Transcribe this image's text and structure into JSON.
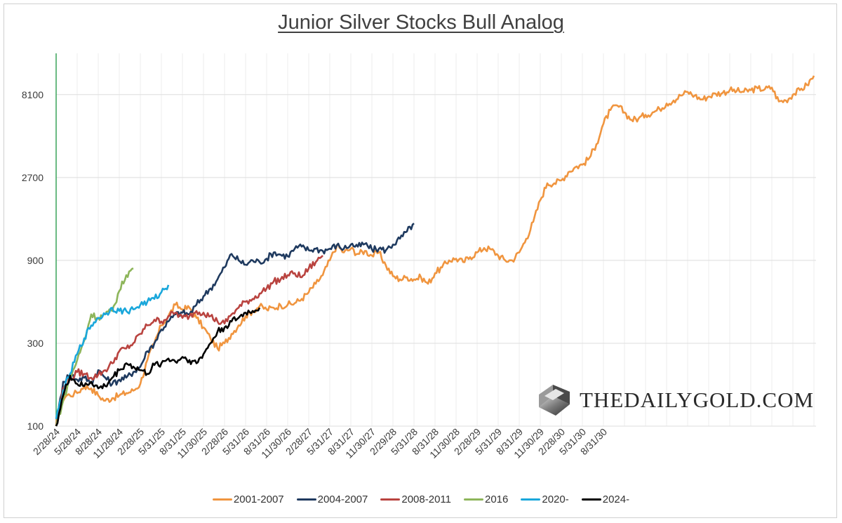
{
  "chart_data": {
    "type": "line",
    "title": "Junior Silver Stocks Bull Analog",
    "y_scale": "log",
    "ylim": [
      100,
      14000
    ],
    "y_ticks": [
      "100",
      "300",
      "900",
      "2700",
      "8100"
    ],
    "x_ticks": [
      "2/28/24",
      "5/28/24",
      "8/28/24",
      "11/28/24",
      "2/28/25",
      "5/31/25",
      "8/31/25",
      "11/30/25",
      "2/28/26",
      "5/31/26",
      "8/31/26",
      "11/30/26",
      "2/28/27",
      "5/31/27",
      "8/31/27",
      "11/30/27",
      "2/29/28",
      "5/31/28",
      "8/31/28",
      "11/30/28",
      "2/28/29",
      "5/31/29",
      "8/31/29",
      "11/30/29",
      "2/28/30",
      "5/31/30",
      "8/31/30"
    ],
    "x_unit": "months since 2/28/24",
    "grid": true,
    "legend_position": "bottom",
    "series": [
      {
        "name": "2001-2007",
        "color": "#F0953F",
        "points": [
          [
            0,
            100
          ],
          [
            0.5,
            135
          ],
          [
            1.5,
            150
          ],
          [
            3,
            155
          ],
          [
            4,
            170
          ],
          [
            5,
            165
          ],
          [
            6,
            150
          ],
          [
            7,
            140
          ],
          [
            8,
            145
          ],
          [
            9,
            150
          ],
          [
            10,
            155
          ],
          [
            11,
            160
          ],
          [
            12,
            175
          ],
          [
            13,
            240
          ],
          [
            14,
            300
          ],
          [
            15,
            380
          ],
          [
            16,
            430
          ],
          [
            17,
            500
          ],
          [
            18,
            470
          ],
          [
            19,
            480
          ],
          [
            20,
            420
          ],
          [
            21,
            370
          ],
          [
            22,
            320
          ],
          [
            23,
            280
          ],
          [
            24,
            300
          ],
          [
            25,
            340
          ],
          [
            26,
            380
          ],
          [
            27,
            430
          ],
          [
            28,
            460
          ],
          [
            29,
            490
          ],
          [
            30,
            470
          ],
          [
            31,
            480
          ],
          [
            32,
            495
          ],
          [
            33,
            500
          ],
          [
            34,
            510
          ],
          [
            35,
            540
          ],
          [
            36,
            590
          ],
          [
            37,
            660
          ],
          [
            38,
            740
          ],
          [
            39,
            900
          ],
          [
            40,
            1100
          ],
          [
            41,
            1000
          ],
          [
            42,
            1050
          ],
          [
            43,
            980
          ],
          [
            44,
            1020
          ],
          [
            45,
            960
          ],
          [
            46,
            1000
          ],
          [
            47,
            840
          ],
          [
            48,
            730
          ],
          [
            49,
            700
          ],
          [
            50,
            720
          ],
          [
            51,
            700
          ],
          [
            52,
            720
          ],
          [
            53,
            660
          ],
          [
            54,
            760
          ],
          [
            55,
            820
          ],
          [
            56,
            900
          ],
          [
            57,
            920
          ],
          [
            58,
            880
          ],
          [
            59,
            940
          ],
          [
            60,
            1000
          ],
          [
            61,
            1060
          ],
          [
            62,
            1040
          ],
          [
            63,
            960
          ],
          [
            64,
            900
          ],
          [
            65,
            900
          ],
          [
            66,
            1000
          ],
          [
            67,
            1200
          ],
          [
            68,
            1500
          ],
          [
            69,
            2000
          ],
          [
            70,
            2500
          ],
          [
            71,
            2500
          ],
          [
            72,
            2600
          ],
          [
            73,
            2900
          ],
          [
            74,
            3100
          ],
          [
            75,
            3200
          ],
          [
            76,
            3500
          ],
          [
            77,
            4200
          ],
          [
            78,
            5500
          ],
          [
            79,
            6600
          ],
          [
            80,
            7000
          ],
          [
            81,
            6400
          ],
          [
            82,
            5800
          ],
          [
            83,
            5900
          ],
          [
            84,
            6200
          ],
          [
            85,
            6400
          ],
          [
            86,
            6700
          ],
          [
            87,
            7200
          ],
          [
            88,
            7500
          ],
          [
            89,
            8000
          ],
          [
            90,
            8400
          ],
          [
            91,
            8000
          ],
          [
            92,
            7600
          ],
          [
            93,
            7900
          ],
          [
            94,
            8200
          ],
          [
            95,
            8300
          ],
          [
            96,
            8600
          ],
          [
            97,
            8500
          ],
          [
            98,
            8400
          ],
          [
            99,
            8600
          ],
          [
            100,
            8800
          ],
          [
            101,
            8700
          ],
          [
            102,
            8900
          ],
          [
            103,
            7400
          ],
          [
            104,
            7500
          ],
          [
            105,
            8100
          ],
          [
            106,
            8600
          ],
          [
            107,
            9200
          ],
          [
            108,
            10400
          ]
        ]
      },
      {
        "name": "2004-2007",
        "color": "#1F3A5F",
        "points": [
          [
            0,
            100
          ],
          [
            1,
            180
          ],
          [
            2,
            200
          ],
          [
            3,
            185
          ],
          [
            4,
            190
          ],
          [
            5,
            178
          ],
          [
            6,
            210
          ],
          [
            7,
            190
          ],
          [
            8,
            175
          ],
          [
            9,
            185
          ],
          [
            10,
            190
          ],
          [
            11,
            205
          ],
          [
            12,
            220
          ],
          [
            13,
            270
          ],
          [
            14,
            300
          ],
          [
            15,
            360
          ],
          [
            16,
            400
          ],
          [
            17,
            440
          ],
          [
            18,
            450
          ],
          [
            19,
            440
          ],
          [
            20,
            500
          ],
          [
            21,
            560
          ],
          [
            22,
            620
          ],
          [
            23,
            700
          ],
          [
            24,
            820
          ],
          [
            25,
            980
          ],
          [
            26,
            900
          ],
          [
            27,
            850
          ],
          [
            28,
            900
          ],
          [
            29,
            880
          ],
          [
            30,
            920
          ],
          [
            31,
            1000
          ],
          [
            32,
            970
          ],
          [
            33,
            950
          ],
          [
            34,
            1050
          ],
          [
            35,
            1080
          ],
          [
            36,
            1030
          ],
          [
            37,
            1050
          ],
          [
            38,
            1020
          ],
          [
            39,
            1050
          ],
          [
            40,
            1100
          ],
          [
            41,
            1050
          ],
          [
            42,
            1110
          ],
          [
            43,
            1080
          ],
          [
            44,
            1120
          ],
          [
            45,
            1040
          ],
          [
            46,
            1050
          ],
          [
            47,
            1030
          ],
          [
            48,
            1110
          ],
          [
            49,
            1200
          ],
          [
            50,
            1320
          ],
          [
            51,
            1470
          ]
        ]
      },
      {
        "name": "2008-2011",
        "color": "#B9433F",
        "points": [
          [
            0,
            100
          ],
          [
            1,
            165
          ],
          [
            2,
            185
          ],
          [
            3,
            205
          ],
          [
            4,
            200
          ],
          [
            5,
            190
          ],
          [
            6,
            198
          ],
          [
            7,
            210
          ],
          [
            8,
            230
          ],
          [
            9,
            270
          ],
          [
            10,
            280
          ],
          [
            11,
            300
          ],
          [
            12,
            340
          ],
          [
            13,
            380
          ],
          [
            14,
            410
          ],
          [
            15,
            400
          ],
          [
            16,
            430
          ],
          [
            17,
            450
          ],
          [
            18,
            420
          ],
          [
            19,
            430
          ],
          [
            20,
            460
          ],
          [
            21,
            450
          ],
          [
            22,
            430
          ],
          [
            23,
            400
          ],
          [
            24,
            390
          ],
          [
            25,
            440
          ],
          [
            26,
            480
          ],
          [
            27,
            520
          ],
          [
            28,
            540
          ],
          [
            29,
            580
          ],
          [
            30,
            620
          ],
          [
            31,
            680
          ],
          [
            32,
            700
          ],
          [
            33,
            740
          ],
          [
            34,
            760
          ],
          [
            35,
            720
          ],
          [
            36,
            810
          ],
          [
            37,
            880
          ],
          [
            38,
            960
          ]
        ]
      },
      {
        "name": "2016",
        "color": "#8DB55A",
        "points": [
          [
            0,
            100
          ],
          [
            1,
            140
          ],
          [
            2,
            190
          ],
          [
            3,
            240
          ],
          [
            4,
            310
          ],
          [
            5,
            440
          ],
          [
            6,
            420
          ],
          [
            7,
            440
          ],
          [
            8,
            460
          ],
          [
            9,
            600
          ],
          [
            10,
            740
          ],
          [
            11,
            810
          ]
        ]
      },
      {
        "name": "2020-",
        "color": "#1AA7DB",
        "points": [
          [
            0,
            110
          ],
          [
            1,
            160
          ],
          [
            2,
            200
          ],
          [
            3,
            260
          ],
          [
            4,
            320
          ],
          [
            5,
            380
          ],
          [
            6,
            420
          ],
          [
            7,
            440
          ],
          [
            8,
            480
          ],
          [
            9,
            460
          ],
          [
            10,
            460
          ],
          [
            11,
            470
          ],
          [
            12,
            500
          ],
          [
            13,
            520
          ],
          [
            14,
            540
          ],
          [
            15,
            590
          ],
          [
            16,
            650
          ]
        ]
      },
      {
        "name": "2024-",
        "color": "#000000",
        "points": [
          [
            0,
            100
          ],
          [
            1,
            150
          ],
          [
            2,
            195
          ],
          [
            3,
            175
          ],
          [
            4,
            170
          ],
          [
            5,
            180
          ],
          [
            6,
            165
          ],
          [
            7,
            170
          ],
          [
            8,
            190
          ],
          [
            9,
            210
          ],
          [
            10,
            230
          ],
          [
            11,
            220
          ],
          [
            12,
            210
          ],
          [
            13,
            200
          ],
          [
            14,
            225
          ],
          [
            15,
            230
          ],
          [
            16,
            245
          ],
          [
            17,
            235
          ],
          [
            18,
            250
          ],
          [
            19,
            240
          ],
          [
            20,
            230
          ],
          [
            21,
            260
          ],
          [
            22,
            300
          ],
          [
            23,
            350
          ],
          [
            24,
            370
          ],
          [
            25,
            400
          ],
          [
            26,
            420
          ],
          [
            27,
            450
          ],
          [
            28,
            460
          ],
          [
            29,
            480
          ]
        ]
      }
    ]
  },
  "watermark": {
    "text": "THEDAILYGOLD.COM"
  }
}
